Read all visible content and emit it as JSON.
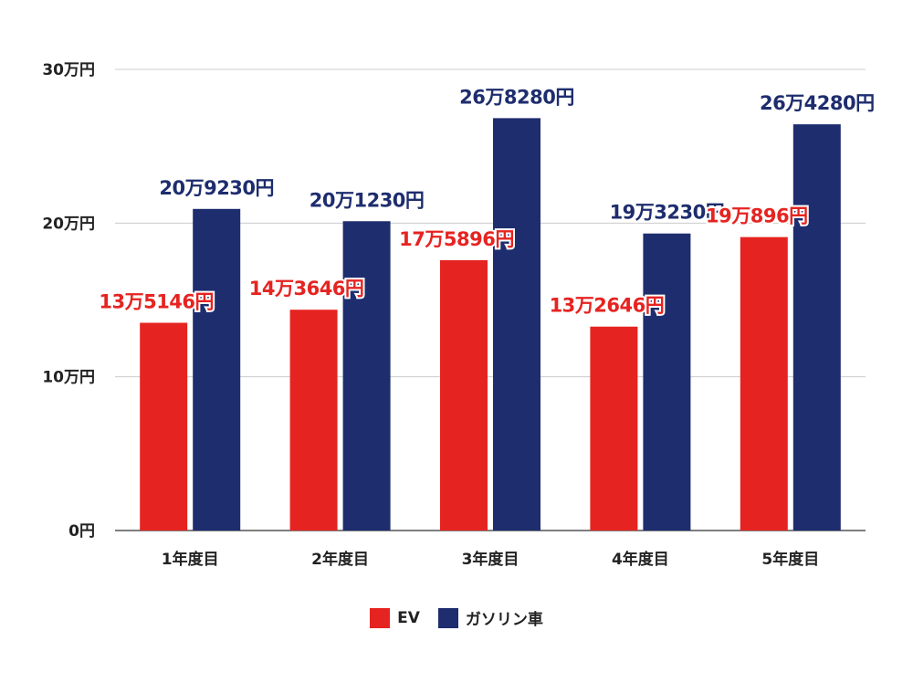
{
  "chart_data": {
    "type": "bar",
    "categories": [
      "1年度目",
      "2年度目",
      "3年度目",
      "4年度目",
      "5年度目"
    ],
    "series": [
      {
        "name": "EV",
        "color": "#e52421",
        "values": [
          135146,
          143646,
          175896,
          132646,
          190896
        ],
        "labels": [
          "13万5146円",
          "14万3646円",
          "17万5896円",
          "13万2646円",
          "19万896円"
        ]
      },
      {
        "name": "ガソリン車",
        "color": "#1e2d6e",
        "values": [
          209230,
          201230,
          268280,
          193230,
          264280
        ],
        "labels": [
          "20万9230円",
          "20万1230円",
          "26万8280円",
          "19万3230円",
          "26万4280円"
        ]
      }
    ],
    "yticks": [
      {
        "value": 0,
        "label": "0円"
      },
      {
        "value": 100000,
        "label": "10万円"
      },
      {
        "value": 200000,
        "label": "20万円"
      },
      {
        "value": 300000,
        "label": "30万円"
      }
    ],
    "ylim": [
      0,
      300000
    ],
    "grid": true,
    "legend": "bottom-center",
    "title": "",
    "xlabel": "",
    "ylabel": ""
  }
}
